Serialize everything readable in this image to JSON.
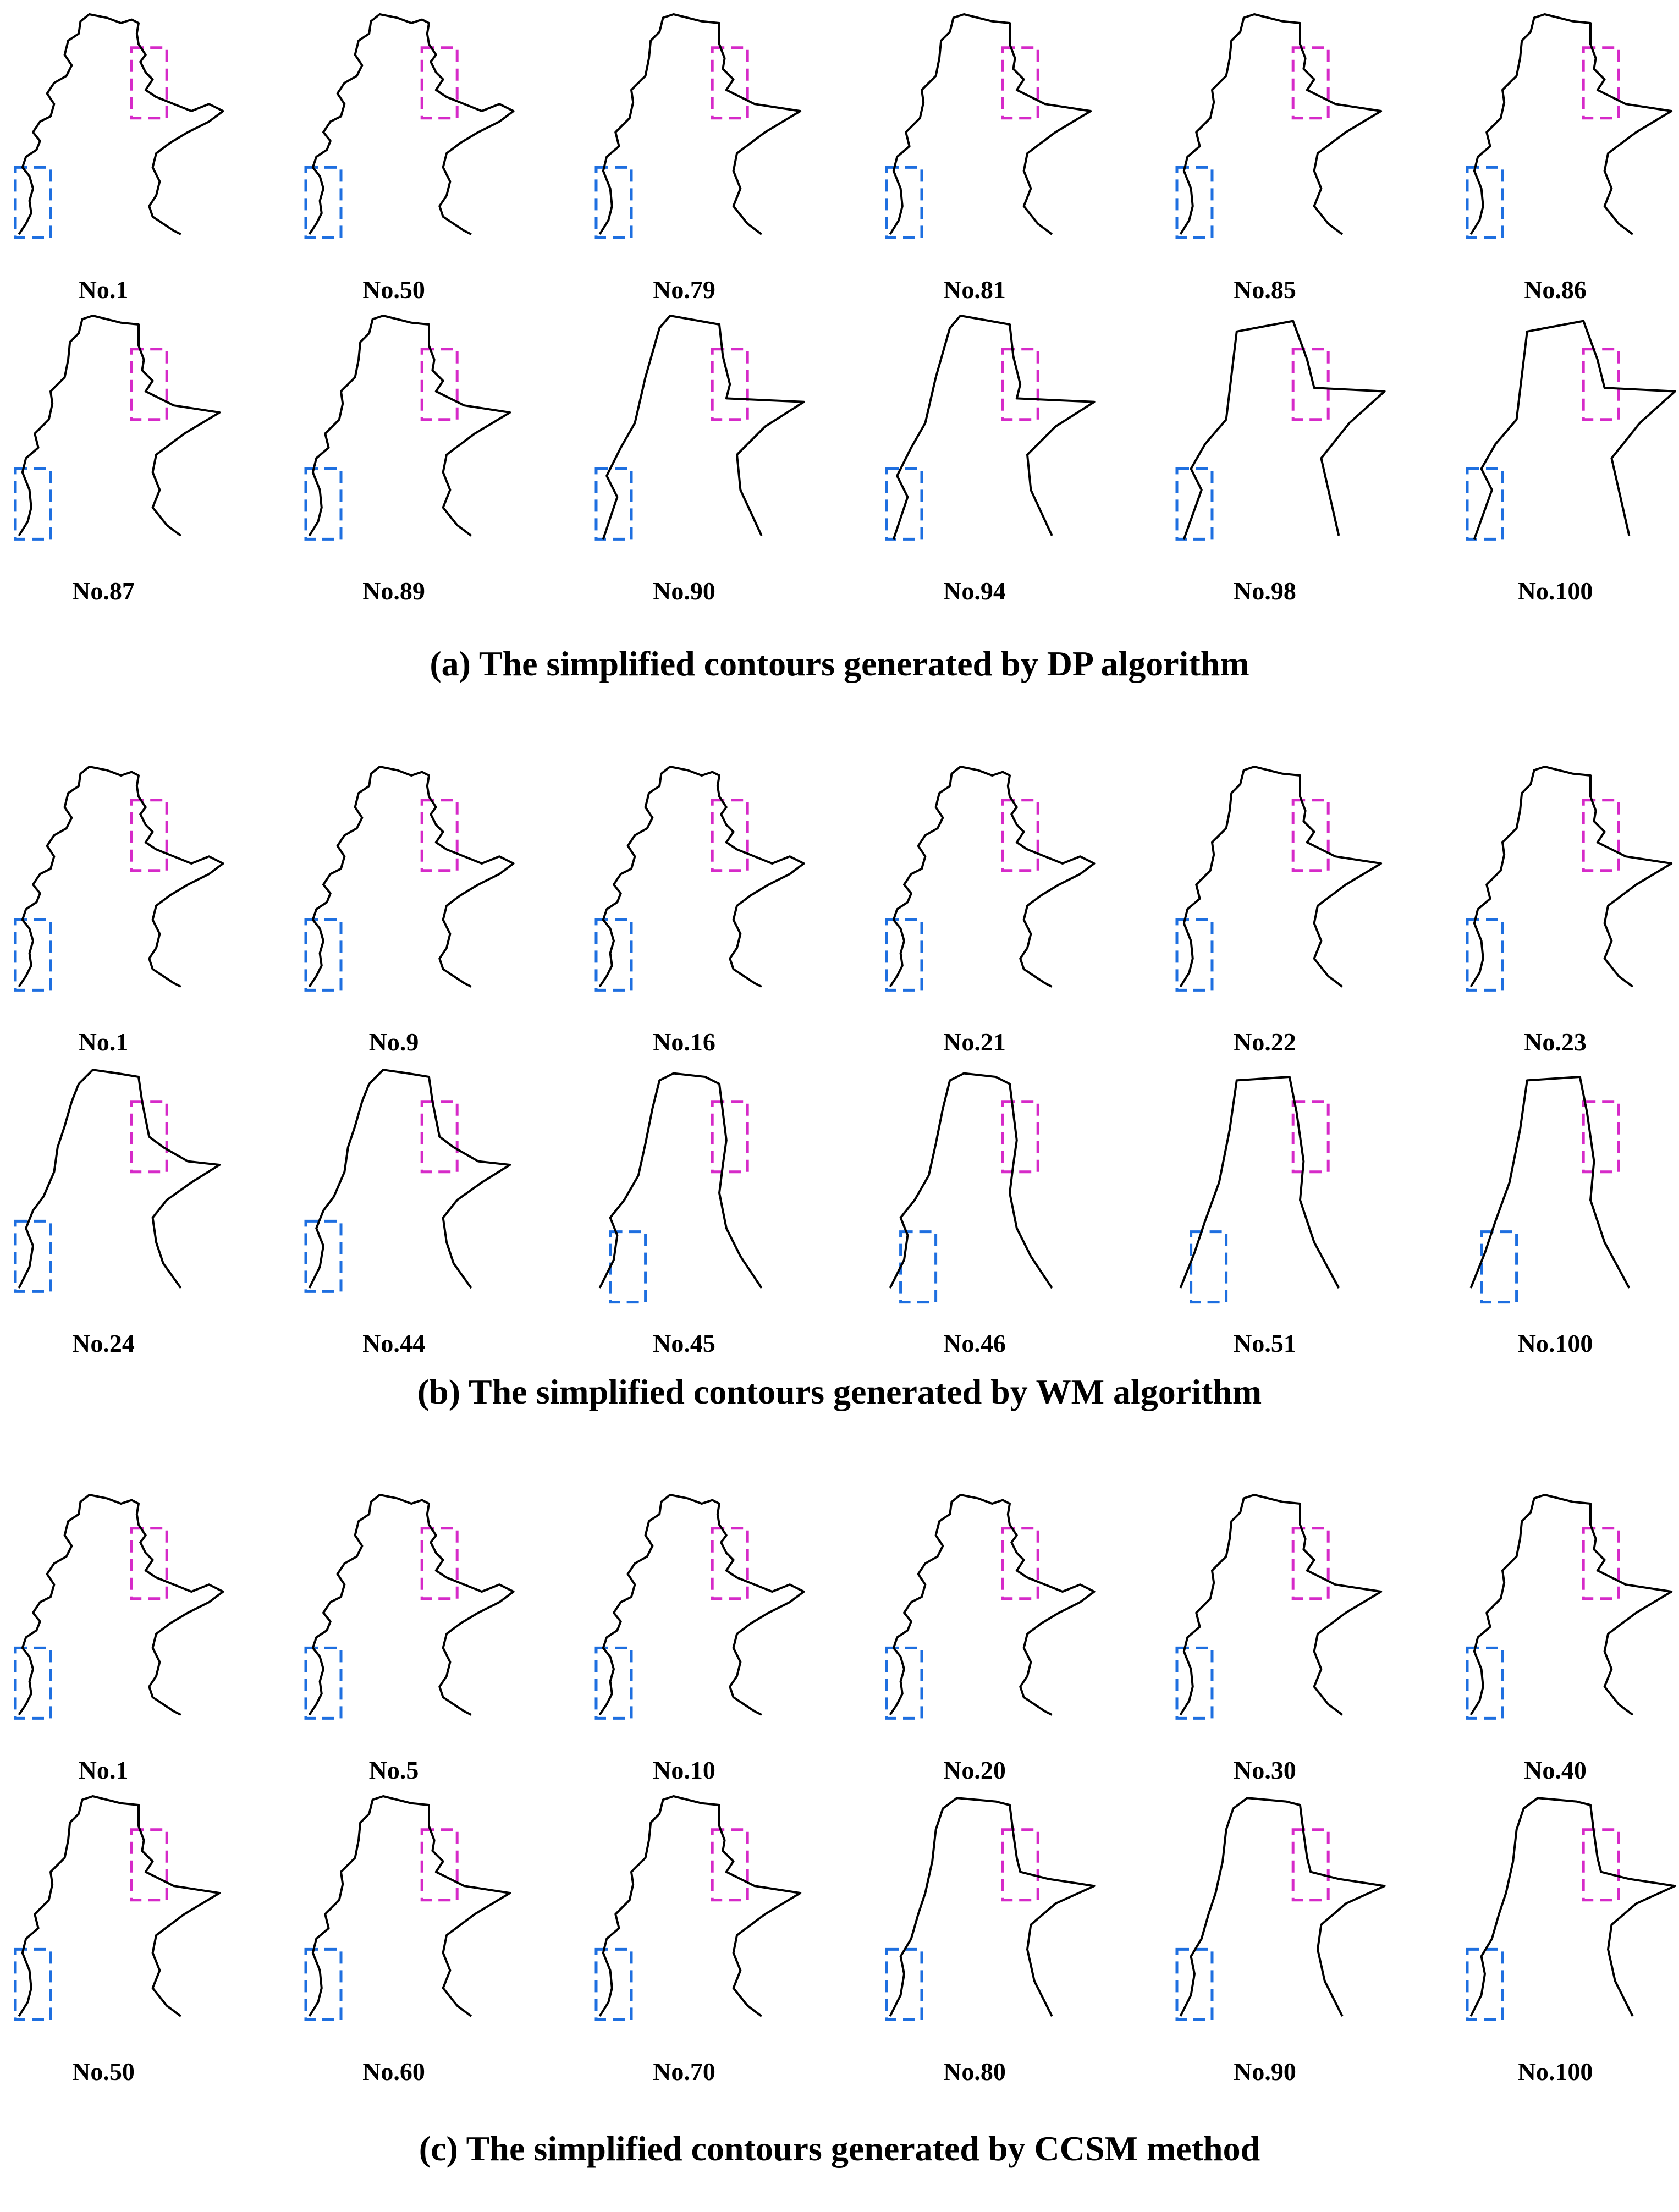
{
  "figure": {
    "colors": {
      "contour": "#000000",
      "blue_box": "#1e6fe0",
      "magenta_box": "#d62ac8"
    },
    "sections": [
      {
        "caption": "(a) The simplified contours generated by DP algorithm",
        "rows": [
          [
            "No.1",
            "No.50",
            "No.79",
            "No.81",
            "No.85",
            "No.86"
          ],
          [
            "No.87",
            "No.89",
            "No.90",
            "No.94",
            "No.98",
            "No.100"
          ]
        ]
      },
      {
        "caption": "(b) The simplified contours generated by WM algorithm",
        "rows": [
          [
            "No.1",
            "No.9",
            "No.16",
            "No.21",
            "No.22",
            "No.23"
          ],
          [
            "No.24",
            "No.44",
            "No.45",
            "No.46",
            "No.51",
            "No.100"
          ]
        ]
      },
      {
        "caption": "(c) The simplified contours generated by CCSM method",
        "rows": [
          [
            "No.1",
            "No.5",
            "No.10",
            "No.20",
            "No.30",
            "No.40"
          ],
          [
            "No.50",
            "No.60",
            "No.70",
            "No.80",
            "No.90",
            "No.100"
          ]
        ]
      }
    ]
  }
}
